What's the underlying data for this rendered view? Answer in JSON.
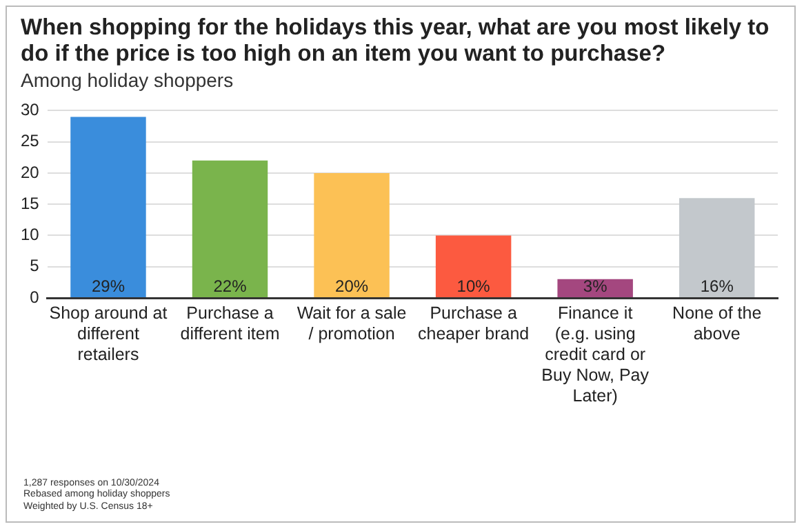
{
  "chart_data": {
    "type": "bar",
    "title": "When shopping for the holidays this year, what are you most likely to do if the price is too high on an item you want to purchase?",
    "subtitle": "Among holiday shoppers",
    "categories": [
      "Shop around at different retailers",
      "Purchase a different item",
      "Wait for a sale / promotion",
      "Purchase a cheaper brand",
      "Finance it (e.g. using credit card or Buy Now, Pay Later)",
      "None of the above"
    ],
    "values": [
      29,
      22,
      20,
      10,
      3,
      16
    ],
    "colors": [
      "#3a8ddc",
      "#7ab44c",
      "#fcc155",
      "#fc5a40",
      "#a4477f",
      "#c3c8cc"
    ],
    "value_labels": [
      "29%",
      "22%",
      "20%",
      "10%",
      "3%",
      "16%"
    ],
    "ylim": [
      0,
      30
    ],
    "yticks": [
      0,
      5,
      10,
      15,
      20,
      25,
      30
    ],
    "grid": "y",
    "annotations": [
      "1,287 responses on 10/30/2024",
      "Rebased among holiday shoppers",
      "Weighted by U.S. Census 18+"
    ]
  }
}
